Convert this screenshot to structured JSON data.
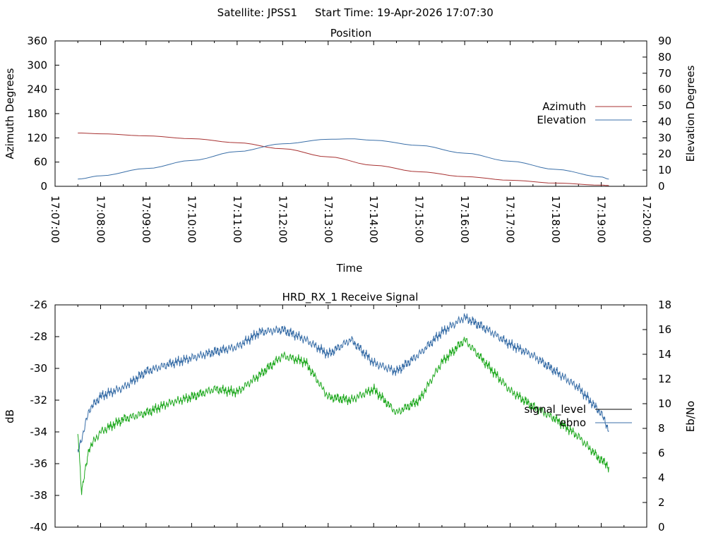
{
  "header": {
    "satellite": "Satellite: JPSS1",
    "start_time": "Start Time: 19-Apr-2026 17:07:30"
  },
  "chart_data": [
    {
      "type": "line",
      "title": "Position",
      "xlabel": "Time",
      "ylabel": "Azimuth Degrees",
      "y2label": "Elevation Degrees",
      "x_ticks": [
        "17:07:00",
        "17:08:00",
        "17:09:00",
        "17:10:00",
        "17:11:00",
        "17:12:00",
        "17:13:00",
        "17:14:00",
        "17:15:00",
        "17:16:00",
        "17:17:00",
        "17:18:00",
        "17:19:00",
        "17:20:00"
      ],
      "xlim": [
        "17:07:00",
        "17:20:00"
      ],
      "y_ticks": [
        "0",
        "60",
        "120",
        "180",
        "240",
        "300",
        "360"
      ],
      "ylim": [
        0,
        360
      ],
      "y2_ticks": [
        "0",
        "10",
        "20",
        "30",
        "40",
        "50",
        "60",
        "70",
        "80",
        "90"
      ],
      "y2lim": [
        0,
        90
      ],
      "grid": false,
      "legend_position": "right",
      "series": [
        {
          "name": "Azimuth",
          "axis": "y",
          "color": "#a83232",
          "x": [
            "17:07:30",
            "17:08:00",
            "17:09:00",
            "17:10:00",
            "17:11:00",
            "17:12:00",
            "17:13:00",
            "17:14:00",
            "17:15:00",
            "17:16:00",
            "17:17:00",
            "17:18:00",
            "17:19:00",
            "17:19:10"
          ],
          "values": [
            132,
            130,
            125,
            118,
            108,
            93,
            73,
            52,
            36,
            24,
            15,
            8,
            3,
            2
          ]
        },
        {
          "name": "Elevation",
          "axis": "y2",
          "color": "#3a6fa8",
          "x": [
            "17:07:30",
            "17:08:00",
            "17:09:00",
            "17:10:00",
            "17:11:00",
            "17:12:00",
            "17:13:00",
            "17:13:30",
            "17:14:00",
            "17:15:00",
            "17:16:00",
            "17:17:00",
            "17:18:00",
            "17:19:00",
            "17:19:10"
          ],
          "values": [
            4.5,
            6.5,
            11,
            16,
            21.5,
            26.3,
            29.1,
            29.4,
            28.5,
            25.3,
            20.5,
            15.5,
            10.5,
            5.8,
            4.5
          ]
        }
      ]
    },
    {
      "type": "line",
      "title": "HRD_RX_1 Receive Signal",
      "xlabel": "",
      "ylabel": "dB",
      "y2label": "Eb/No",
      "x_ticks": [],
      "xlim": [
        "17:07:00",
        "17:20:00"
      ],
      "y_ticks": [
        "-40",
        "-38",
        "-36",
        "-34",
        "-32",
        "-30",
        "-28",
        "-26"
      ],
      "ylim": [
        -40,
        -26
      ],
      "y2_ticks": [
        "0",
        "2",
        "4",
        "6",
        "8",
        "10",
        "12",
        "14",
        "16",
        "18"
      ],
      "y2lim": [
        0,
        18
      ],
      "grid": false,
      "legend_position": "right",
      "series": [
        {
          "name": "signal_level",
          "axis": "y",
          "color": "#000000",
          "x": [],
          "values": []
        },
        {
          "name": "ebno",
          "axis": "y2",
          "color": "#3a6fa8",
          "x": [
            "17:07:30",
            "17:07:45",
            "17:08:00",
            "17:08:30",
            "17:09:00",
            "17:09:30",
            "17:10:00",
            "17:10:30",
            "17:11:00",
            "17:11:30",
            "17:12:00",
            "17:12:30",
            "17:13:00",
            "17:13:30",
            "17:14:00",
            "17:14:30",
            "17:15:00",
            "17:15:30",
            "17:16:00",
            "17:16:30",
            "17:17:00",
            "17:17:30",
            "17:18:00",
            "17:18:30",
            "17:19:00",
            "17:19:10"
          ],
          "values": [
            6.0,
            9.5,
            10.6,
            11.3,
            12.6,
            13.2,
            13.7,
            14.2,
            14.6,
            15.8,
            16.0,
            15.2,
            14.0,
            15.2,
            13.3,
            12.6,
            14.0,
            15.8,
            17.0,
            16.0,
            14.8,
            13.9,
            12.6,
            11.3,
            9.2,
            7.8
          ]
        },
        {
          "name": "",
          "axis": "y",
          "color": "#22aa22",
          "x": [
            "17:07:30",
            "17:07:35",
            "17:07:45",
            "17:08:00",
            "17:08:30",
            "17:09:00",
            "17:09:30",
            "17:10:00",
            "17:10:30",
            "17:11:00",
            "17:11:30",
            "17:12:00",
            "17:12:30",
            "17:13:00",
            "17:13:30",
            "17:14:00",
            "17:14:30",
            "17:15:00",
            "17:15:30",
            "17:16:00",
            "17:16:30",
            "17:17:00",
            "17:17:30",
            "17:18:00",
            "17:18:30",
            "17:19:00",
            "17:19:10"
          ],
          "values": [
            -34.0,
            -37.8,
            -35.0,
            -34.0,
            -33.2,
            -32.8,
            -32.2,
            -31.8,
            -31.3,
            -31.5,
            -30.4,
            -29.2,
            -29.6,
            -31.8,
            -32.0,
            -31.3,
            -32.8,
            -32.0,
            -29.6,
            -28.2,
            -29.8,
            -31.4,
            -32.4,
            -33.2,
            -34.3,
            -35.8,
            -36.2
          ]
        }
      ]
    }
  ]
}
